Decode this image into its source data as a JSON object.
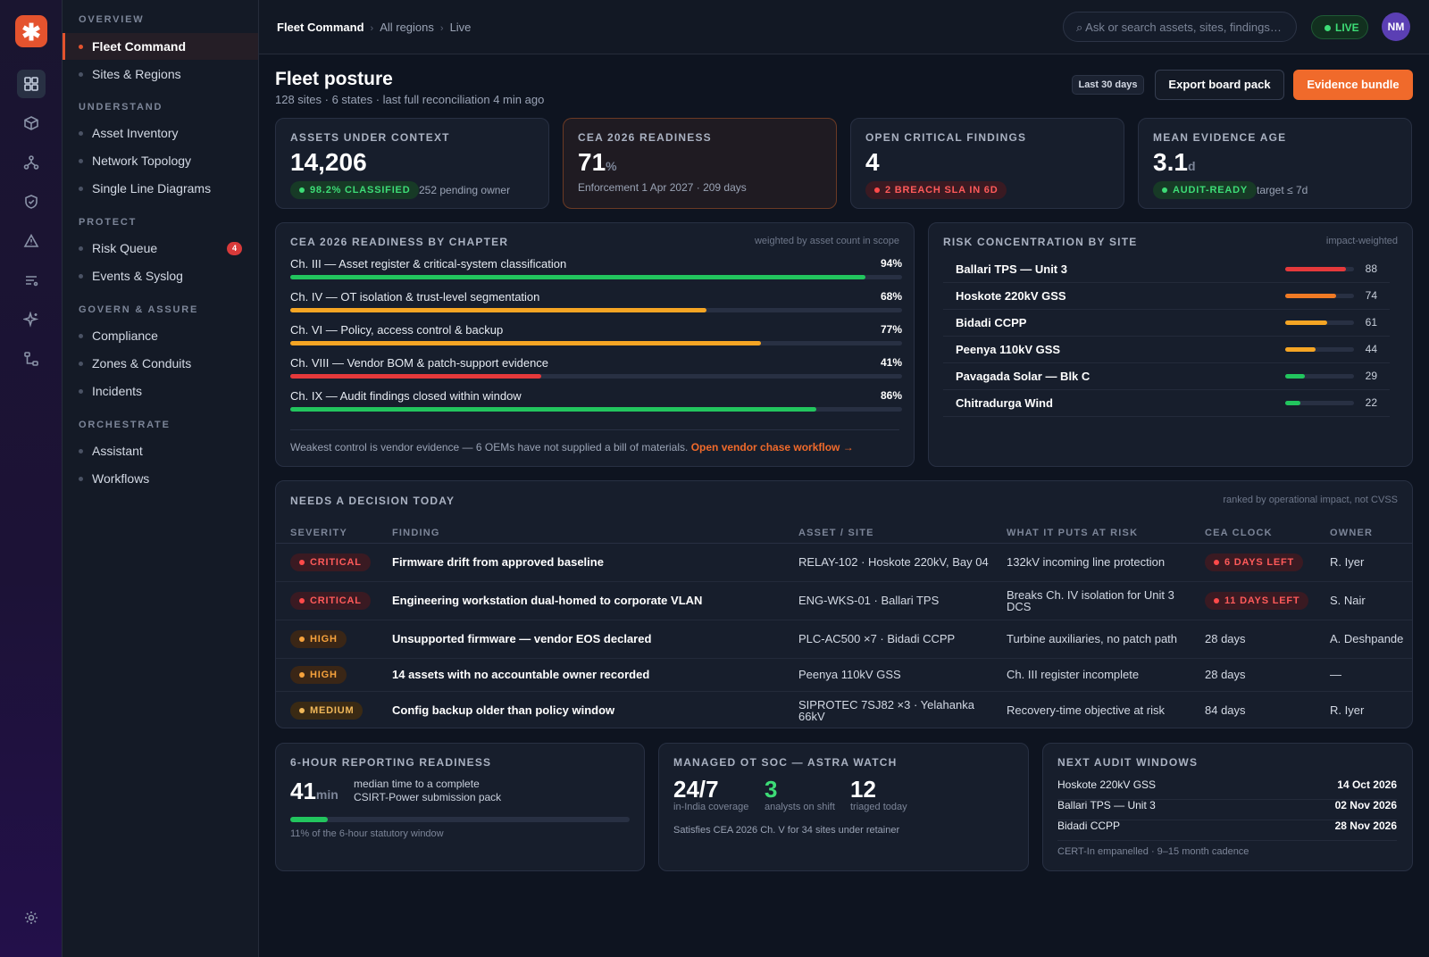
{
  "rail": {
    "logo": "✱",
    "icons": [
      "dashboard-icon",
      "cube-icon",
      "topology-icon",
      "shield-icon",
      "alert-icon",
      "list-icon",
      "sparkle-icon",
      "workflow-icon",
      "settings-icon"
    ]
  },
  "nav": {
    "groups": [
      {
        "label": "OVERVIEW",
        "items": [
          {
            "label": "Fleet Command",
            "active": true
          },
          {
            "label": "Sites & Regions"
          }
        ]
      },
      {
        "label": "UNDERSTAND",
        "items": [
          {
            "label": "Asset Inventory"
          },
          {
            "label": "Network Topology"
          },
          {
            "label": "Single Line Diagrams"
          }
        ]
      },
      {
        "label": "PROTECT",
        "items": [
          {
            "label": "Risk Queue",
            "badge": "4"
          },
          {
            "label": "Events & Syslog"
          }
        ]
      },
      {
        "label": "GOVERN & ASSURE",
        "items": [
          {
            "label": "Compliance"
          },
          {
            "label": "Zones & Conduits"
          },
          {
            "label": "Incidents"
          }
        ]
      },
      {
        "label": "ORCHESTRATE",
        "items": [
          {
            "label": "Assistant"
          },
          {
            "label": "Workflows"
          }
        ]
      }
    ]
  },
  "topbar": {
    "crumbs": [
      "Fleet Command",
      "All regions",
      "Live"
    ],
    "search_placeholder": "⌕ Ask or search assets, sites, findings…",
    "live": "LIVE",
    "avatar": "NM"
  },
  "header": {
    "title": "Fleet posture",
    "subtitle": "128 sites · 6 states · last full reconciliation 4 min ago",
    "range": "Last 30 days",
    "export": "Export board pack",
    "evidence": "Evidence bundle"
  },
  "kpis": {
    "assets": {
      "title": "ASSETS UNDER CONTEXT",
      "value": "14,206",
      "pill": "98.2% CLASSIFIED",
      "sub": "252 pending owner"
    },
    "readiness": {
      "title": "CEA 2026 READINESS",
      "value": "71",
      "unit": "%",
      "sub": "Enforcement 1 Apr 2027 · 209 days"
    },
    "findings": {
      "title": "OPEN CRITICAL FINDINGS",
      "value": "4",
      "pill": "2 BREACH SLA IN 6D"
    },
    "evidence": {
      "title": "MEAN EVIDENCE AGE",
      "value": "3.1",
      "unit": "d",
      "pill": "AUDIT-READY",
      "sub": "target ≤ 7d"
    }
  },
  "chapters": {
    "title": "CEA 2026 READINESS BY CHAPTER",
    "note": "weighted by asset count in scope",
    "rows": [
      {
        "label": "Ch. III — Asset register & critical-system classification",
        "pct": "94%",
        "value": 94,
        "color": "#22c55e"
      },
      {
        "label": "Ch. IV — OT isolation & trust-level segmentation",
        "pct": "68%",
        "value": 68,
        "color": "#f5a524"
      },
      {
        "label": "Ch. VI — Policy, access control & backup",
        "pct": "77%",
        "value": 77,
        "color": "#f5a524"
      },
      {
        "label": "Ch. VIII — Vendor BOM & patch-support evidence",
        "pct": "41%",
        "value": 41,
        "color": "#e5393b"
      },
      {
        "label": "Ch. IX — Audit findings closed within window",
        "pct": "86%",
        "value": 86,
        "color": "#22c55e"
      }
    ],
    "footer": "Weakest control is vendor evidence — 6 OEMs have not supplied a bill of materials.",
    "link": "Open vendor chase workflow →"
  },
  "risk": {
    "title": "RISK CONCENTRATION BY SITE",
    "note": "impact-weighted",
    "rows": [
      {
        "name": "Ballari TPS — Unit 3",
        "value": "88",
        "score": 88,
        "color": "#e5393b"
      },
      {
        "name": "Hoskote 220kV GSS",
        "value": "74",
        "score": 74,
        "color": "#f07a24"
      },
      {
        "name": "Bidadi CCPP",
        "value": "61",
        "score": 61,
        "color": "#f5a524"
      },
      {
        "name": "Peenya 110kV GSS",
        "value": "44",
        "score": 44,
        "color": "#f5a524"
      },
      {
        "name": "Pavagada Solar — Blk C",
        "value": "29",
        "score": 29,
        "color": "#22c55e"
      },
      {
        "name": "Chitradurga Wind",
        "value": "22",
        "score": 22,
        "color": "#22c55e"
      }
    ]
  },
  "decisions": {
    "title": "NEEDS A DECISION TODAY",
    "note": "ranked by operational impact, not CVSS",
    "columns": [
      "SEVERITY",
      "FINDING",
      "ASSET / SITE",
      "WHAT IT PUTS AT RISK",
      "CEA CLOCK",
      "OWNER"
    ],
    "rows": [
      {
        "severity": "CRITICAL",
        "sev": "pr",
        "finding": "Firmware drift from approved baseline",
        "asset": "RELAY-102 · Hoskote 220kV, Bay 04",
        "risk": "132kV incoming line protection",
        "clock": "6 DAYS LEFT",
        "clock_pill": true,
        "owner": "R. Iyer"
      },
      {
        "severity": "CRITICAL",
        "sev": "pr",
        "finding": "Engineering workstation dual-homed to corporate VLAN",
        "asset": "ENG-WKS-01 · Ballari TPS",
        "risk": "Breaks Ch. IV isolation for Unit 3 DCS",
        "clock": "11 DAYS LEFT",
        "clock_pill": true,
        "owner": "S. Nair"
      },
      {
        "severity": "HIGH",
        "sev": "po",
        "finding": "Unsupported firmware — vendor EOS declared",
        "asset": "PLC-AC500 ×7 · Bidadi CCPP",
        "risk": "Turbine auxiliaries, no patch path",
        "clock": "28 days",
        "clock_pill": false,
        "owner": "A. Deshpande"
      },
      {
        "severity": "HIGH",
        "sev": "po",
        "finding": "14 assets with no accountable owner recorded",
        "asset": "Peenya 110kV GSS",
        "risk": "Ch. III register incomplete",
        "clock": "28 days",
        "clock_pill": false,
        "owner": "—"
      },
      {
        "severity": "MEDIUM",
        "sev": "pm",
        "finding": "Config backup older than policy window",
        "asset": "SIPROTEC 7SJ82 ×3 · Yelahanka 66kV",
        "risk": "Recovery-time objective at risk",
        "clock": "84 days",
        "clock_pill": false,
        "owner": "R. Iyer"
      }
    ]
  },
  "reporting": {
    "title": "6-HOUR REPORTING READINESS",
    "value": "41",
    "unit": "min",
    "desc1": "median time to a complete",
    "desc2": "CSIRT-Power submission pack",
    "progress": 11,
    "footer": "11% of the 6-hour statutory window"
  },
  "soc": {
    "title": "MANAGED OT SOC — ASTRA WATCH",
    "stats": [
      {
        "value": "24/7",
        "label": "in-India coverage",
        "color": "#ffffff"
      },
      {
        "value": "3",
        "label": "analysts on shift",
        "color": "#3ddc76"
      },
      {
        "value": "12",
        "label": "triaged today",
        "color": "#ffffff"
      }
    ],
    "footer": "Satisfies CEA 2026 Ch. V for 34 sites under retainer"
  },
  "audit": {
    "title": "NEXT AUDIT WINDOWS",
    "rows": [
      {
        "site": "Hoskote 220kV GSS",
        "date": "14 Oct 2026"
      },
      {
        "site": "Ballari TPS — Unit 3",
        "date": "02 Nov 2026"
      },
      {
        "site": "Bidadi CCPP",
        "date": "28 Nov 2026"
      }
    ],
    "footer": "CERT-In empanelled · 9–15 month cadence"
  }
}
